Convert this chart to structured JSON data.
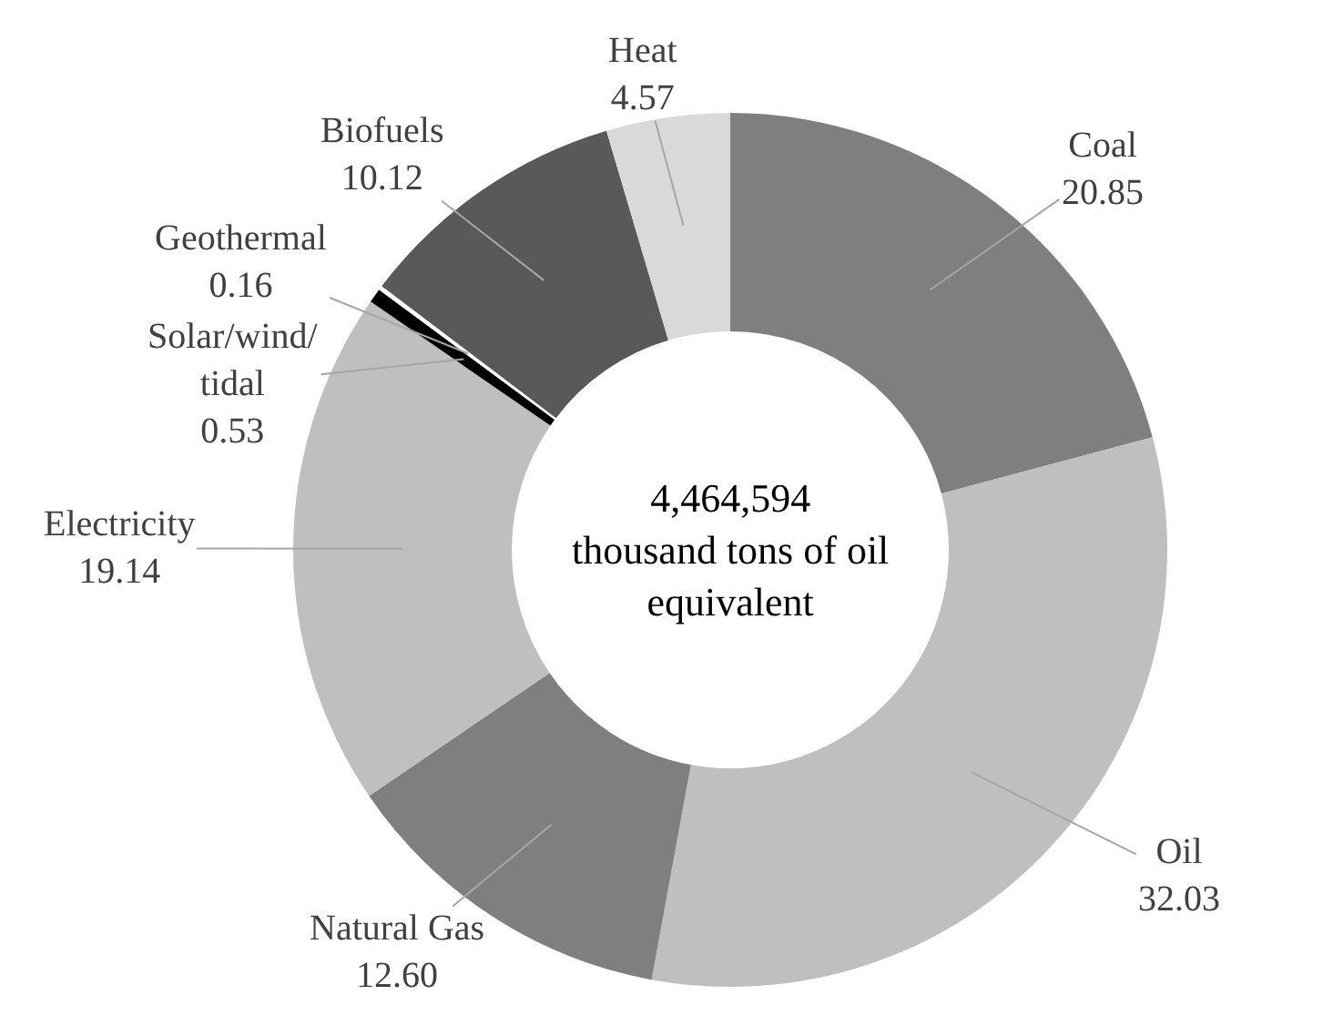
{
  "chart_data": {
    "type": "donut",
    "categories": [
      "Coal",
      "Oil",
      "Natural Gas",
      "Electricity",
      "Solar/wind/tidal",
      "Geothermal",
      "Biofuels",
      "Heat"
    ],
    "values": [
      20.85,
      32.03,
      12.6,
      19.14,
      0.53,
      0.16,
      10.12,
      4.57
    ],
    "value_labels": [
      "20.85",
      "32.03",
      "12.60",
      "19.14",
      "0.53",
      "0.16",
      "10.12",
      "4.57"
    ],
    "colors": [
      "#7f7f7f",
      "#bfbfbf",
      "#7f7f7f",
      "#bfbfbf",
      "#000000",
      "#ffffff",
      "#595959",
      "#d9d9d9"
    ],
    "annotations": [
      "4,464,594\nthousand tons of oil\nequivalent"
    ]
  }
}
